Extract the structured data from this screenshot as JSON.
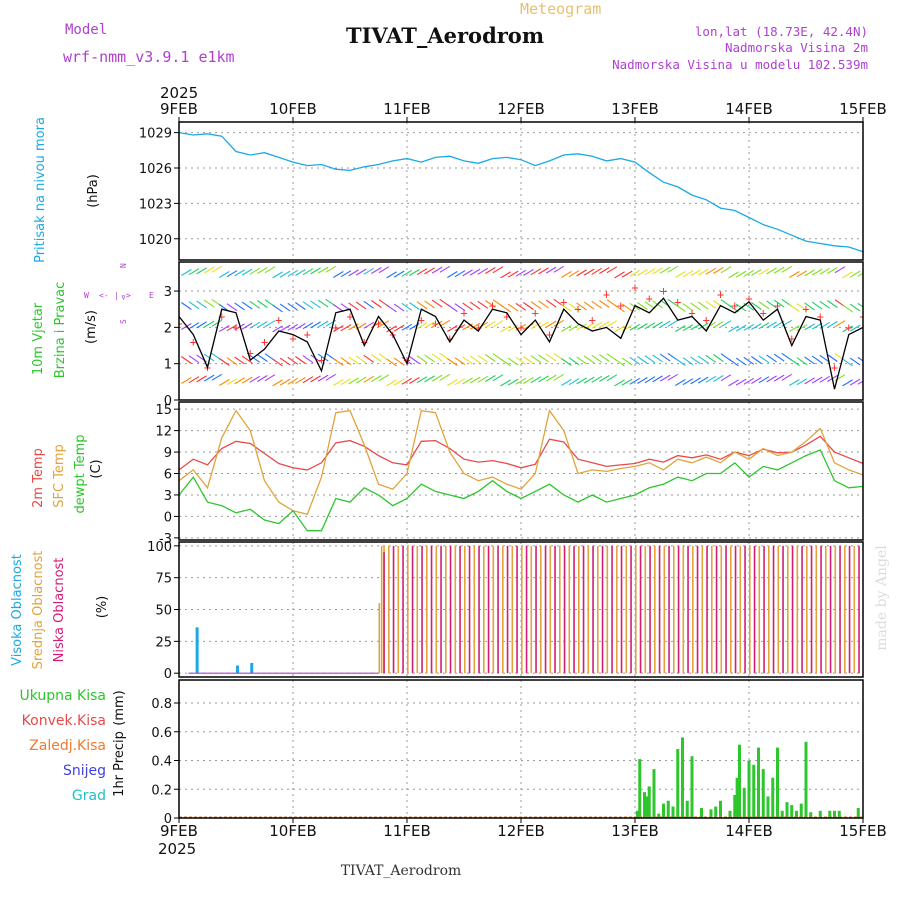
{
  "header": {
    "model_label": "Model",
    "model_name": "wrf-nmm_v3.9.1 e1km",
    "meteogram_label": "Meteogram",
    "station_title": "TIVAT_Aerodrom",
    "lonlat": "lon,lat (18.73E, 42.4N)",
    "altitude": "Nadmorska Visina 2m",
    "model_altitude": "Nadmorska Visina u modelu 102.539m",
    "footer_title": "TIVAT_Aerodrom",
    "watermark": "made by Angel"
  },
  "colors": {
    "pressure": "#1ba9e6",
    "wind_speed": "#000000",
    "wind_dir": "#ff3333",
    "temp2m": "#e84a4a",
    "sfc_temp": "#e0a43c",
    "dewpt": "#2dc62d",
    "cloud_high": "#1ba9e6",
    "cloud_mid": "#e0a43c",
    "cloud_low": "#d21e78",
    "precip_total": "#2dc62d",
    "precip_conv": "#e84a4a",
    "purple": "#b040d0"
  },
  "chart_data": [
    {
      "type": "line",
      "panel": "pressure",
      "ylabel_1": "Pritisak na nivou mora",
      "ylabel_2": "(hPa)",
      "ylim": [
        1018.2,
        1029.9
      ],
      "yticks": [
        "1020",
        "1023",
        "1026",
        "1029"
      ],
      "ytick_values": [
        1020,
        1023,
        1026,
        1029
      ],
      "x_hours": [
        0,
        3,
        6,
        9,
        12,
        15,
        18,
        21,
        24,
        27,
        30,
        33,
        36,
        39,
        42,
        45,
        48,
        51,
        54,
        57,
        60,
        63,
        66,
        69,
        72,
        75,
        78,
        81,
        84,
        87,
        90,
        93,
        96,
        99,
        102,
        105,
        108,
        111,
        114,
        117,
        120,
        123,
        126,
        129,
        132,
        135,
        138,
        141,
        144
      ],
      "values": [
        1029.0,
        1028.8,
        1028.9,
        1028.7,
        1027.4,
        1027.1,
        1027.3,
        1026.9,
        1026.5,
        1026.2,
        1026.3,
        1025.9,
        1025.8,
        1026.1,
        1026.3,
        1026.6,
        1026.8,
        1026.5,
        1026.9,
        1027.0,
        1026.6,
        1026.4,
        1026.8,
        1026.9,
        1026.7,
        1026.2,
        1026.6,
        1027.1,
        1027.2,
        1027.0,
        1026.6,
        1026.8,
        1026.5,
        1025.6,
        1024.8,
        1024.4,
        1023.7,
        1023.3,
        1022.6,
        1022.4,
        1021.8,
        1021.2,
        1020.8,
        1020.3,
        1019.8,
        1019.6,
        1019.4,
        1019.3,
        1018.9
      ]
    },
    {
      "type": "line",
      "panel": "wind",
      "ylabel_1": "10m Vjetar",
      "ylabel_2": "Brzina i Pravac",
      "ylabel_3": "(m/s)",
      "compass": [
        "W",
        "<-",
        "|",
        "->",
        "E",
        "S",
        "<",
        "N"
      ],
      "ylim": [
        0,
        3.8
      ],
      "yticks": [
        "0",
        "1",
        "2",
        "3"
      ],
      "ytick_values": [
        0,
        1,
        2,
        3
      ],
      "x_hours": [
        0,
        3,
        6,
        9,
        12,
        15,
        18,
        21,
        24,
        27,
        30,
        33,
        36,
        39,
        42,
        45,
        48,
        51,
        54,
        57,
        60,
        63,
        66,
        69,
        72,
        75,
        78,
        81,
        84,
        87,
        90,
        93,
        96,
        99,
        102,
        105,
        108,
        111,
        114,
        117,
        120,
        123,
        126,
        129,
        132,
        135,
        138,
        141,
        144
      ],
      "values": [
        2.3,
        1.8,
        0.9,
        2.5,
        2.4,
        1.1,
        1.4,
        1.9,
        1.8,
        1.6,
        0.8,
        2.4,
        2.5,
        1.5,
        2.3,
        1.8,
        1.0,
        2.5,
        2.3,
        1.6,
        2.2,
        1.9,
        2.5,
        2.4,
        1.8,
        2.2,
        1.6,
        2.5,
        2.1,
        1.9,
        2.0,
        1.7,
        2.6,
        2.4,
        2.8,
        2.2,
        2.3,
        1.9,
        2.6,
        2.4,
        2.7,
        2.2,
        2.5,
        1.5,
        2.3,
        2.2,
        0.3,
        1.8,
        2.0
      ],
      "direction_values": [
        2.1,
        1.6,
        0.9,
        2.3,
        2.0,
        1.3,
        1.6,
        2.2,
        1.7,
        1.8,
        1.1,
        2.0,
        2.3,
        1.6,
        2.1,
        1.8,
        1.1,
        2.2,
        2.1,
        1.7,
        2.4,
        2.0,
        2.6,
        2.3,
        2.0,
        2.4,
        1.8,
        2.7,
        2.5,
        2.2,
        2.9,
        2.6,
        3.1,
        2.8,
        3.0,
        2.7,
        2.4,
        2.2,
        2.9,
        2.6,
        2.8,
        2.4,
        2.6,
        1.7,
        2.5,
        2.3,
        0.9,
        2.0,
        2.3
      ]
    },
    {
      "type": "line",
      "panel": "temperature",
      "ylabel_1": "2m Temp",
      "ylabel_2": "SFC Temp",
      "ylabel_3": "dewpt Temp",
      "ylabel_4": "(C)",
      "ylim": [
        -3.3,
        16
      ],
      "yticks": [
        "-3",
        "0",
        "3",
        "6",
        "9",
        "12",
        "15"
      ],
      "ytick_values": [
        -3,
        0,
        3,
        6,
        9,
        12,
        15
      ],
      "x_hours": [
        0,
        3,
        6,
        9,
        12,
        15,
        18,
        21,
        24,
        27,
        30,
        33,
        36,
        39,
        42,
        45,
        48,
        51,
        54,
        57,
        60,
        63,
        66,
        69,
        72,
        75,
        78,
        81,
        84,
        87,
        90,
        93,
        96,
        99,
        102,
        105,
        108,
        111,
        114,
        117,
        120,
        123,
        126,
        129,
        132,
        135,
        138,
        141,
        144
      ],
      "series": [
        {
          "name": "2m Temp",
          "values": [
            6.5,
            8.0,
            7.2,
            9.5,
            10.5,
            10.2,
            8.8,
            7.4,
            6.8,
            6.5,
            7.5,
            10.3,
            10.6,
            9.8,
            8.5,
            7.5,
            7.2,
            10.5,
            10.6,
            9.5,
            8.0,
            7.6,
            7.8,
            7.4,
            6.8,
            7.3,
            10.8,
            10.4,
            8.0,
            7.5,
            7.0,
            7.2,
            7.4,
            8.0,
            7.6,
            8.5,
            8.2,
            8.6,
            8.0,
            9.0,
            8.5,
            9.4,
            8.9,
            9.0,
            10.0,
            11.2,
            9.0,
            8.2,
            7.4
          ]
        },
        {
          "name": "SFC Temp",
          "values": [
            5.0,
            6.5,
            4.0,
            11.0,
            14.8,
            12.0,
            5.0,
            2.0,
            0.8,
            0.3,
            5.5,
            14.5,
            14.8,
            10.0,
            4.5,
            3.8,
            6.0,
            14.8,
            14.5,
            9.0,
            6.0,
            5.0,
            5.5,
            4.5,
            3.8,
            6.0,
            14.8,
            12.0,
            6.0,
            6.5,
            6.3,
            6.7,
            7.0,
            7.5,
            6.5,
            8.0,
            7.5,
            8.3,
            7.5,
            9.0,
            8.0,
            9.5,
            8.5,
            9.0,
            10.5,
            12.3,
            7.5,
            6.5,
            5.8
          ]
        },
        {
          "name": "dewpt Temp",
          "values": [
            3.0,
            5.5,
            2.0,
            1.5,
            0.5,
            1.0,
            -0.5,
            -1.0,
            0.8,
            -2.0,
            -2.0,
            2.5,
            2.0,
            4.0,
            3.0,
            1.5,
            2.5,
            4.5,
            3.5,
            3.0,
            2.5,
            3.5,
            5.0,
            3.5,
            2.5,
            3.5,
            4.5,
            3.0,
            2.0,
            3.0,
            2.0,
            2.5,
            3.0,
            4.0,
            4.5,
            5.5,
            5.0,
            6.0,
            6.0,
            7.5,
            5.5,
            7.0,
            6.5,
            7.5,
            8.5,
            9.3,
            5.0,
            4.0,
            4.2
          ]
        }
      ]
    },
    {
      "type": "bar",
      "panel": "cloud",
      "ylabel_1": "Visoka Oblacnost",
      "ylabel_2": "Srednja Oblacnost",
      "ylabel_3": "Niska Oblacnost",
      "ylabel_4": "(%)",
      "ylim": [
        -3,
        103
      ],
      "yticks": [
        "0",
        "25",
        "50",
        "75",
        "100"
      ],
      "ytick_values": [
        0,
        25,
        50,
        75,
        100
      ],
      "note": "high values (H), mid values (M), low values (L) per 1.5h step",
      "high": {
        "x_hours": [
          3.5,
          12,
          15
        ],
        "values": [
          36,
          6,
          8
        ]
      },
      "mid": {
        "x_hours": [
          42,
          42.5,
          43,
          44,
          46,
          48,
          50,
          52,
          54,
          56,
          58,
          60,
          62,
          64,
          66,
          68,
          70,
          72,
          74,
          76,
          78,
          80,
          82,
          84,
          86,
          88,
          90,
          92,
          94,
          96,
          98,
          100,
          102,
          104,
          106,
          108,
          110,
          112,
          114,
          116,
          118,
          120,
          122,
          124,
          126,
          128,
          130,
          132,
          134,
          136,
          138,
          140,
          142
        ],
        "values": [
          55,
          100,
          100,
          100,
          100,
          100,
          100,
          100,
          100,
          100,
          100,
          100,
          100,
          100,
          100,
          100,
          100,
          100,
          100,
          100,
          100,
          100,
          100,
          100,
          100,
          100,
          100,
          100,
          100,
          100,
          100,
          100,
          100,
          100,
          100,
          100,
          100,
          100,
          100,
          100,
          100,
          100,
          100,
          100,
          100,
          100,
          100,
          100,
          100,
          100,
          100,
          100,
          100
        ]
      },
      "low": {
        "x_hours": [
          43,
          45,
          47,
          49,
          51,
          53,
          55,
          57,
          59,
          61,
          63,
          65,
          67,
          69,
          71,
          73,
          75,
          77,
          79,
          81,
          83,
          85,
          87,
          89,
          91,
          93,
          95,
          97,
          99,
          101,
          103,
          105,
          107,
          109,
          111,
          113,
          115,
          117,
          119,
          121,
          123,
          125,
          127,
          129,
          131,
          133,
          135,
          137,
          139,
          141,
          143
        ],
        "values": [
          95,
          100,
          100,
          100,
          100,
          100,
          100,
          100,
          100,
          100,
          100,
          100,
          100,
          100,
          100,
          100,
          100,
          100,
          100,
          100,
          100,
          100,
          100,
          100,
          100,
          100,
          100,
          100,
          100,
          100,
          100,
          100,
          100,
          100,
          100,
          100,
          100,
          100,
          100,
          100,
          100,
          100,
          100,
          100,
          100,
          100,
          100,
          100,
          100,
          100,
          100
        ]
      }
    },
    {
      "type": "bar",
      "panel": "precip",
      "legend": [
        "Ukupna Kisa",
        "Konvek.Kisa",
        "Zaledj.Kisa",
        "Snijeg",
        "Grad"
      ],
      "ylabel_1": "1hr Precip",
      "ylabel_2": "(mm)",
      "ylim": [
        0,
        0.96
      ],
      "yticks": [
        "0",
        "0.2",
        "0.4",
        "0.6",
        "0.8"
      ],
      "ytick_values": [
        0,
        0.2,
        0.4,
        0.6,
        0.8
      ],
      "x_hours": [
        96.5,
        97,
        98,
        98.5,
        99,
        100,
        101,
        102,
        103,
        104,
        105,
        106,
        107,
        108,
        110,
        112,
        113,
        114,
        116,
        117,
        117.5,
        118,
        119,
        120,
        121,
        122,
        123,
        124,
        125,
        126,
        127,
        128,
        129,
        130,
        131,
        132,
        133,
        135,
        137,
        138,
        139,
        143
      ],
      "values": [
        0.05,
        0.41,
        0.18,
        0.15,
        0.22,
        0.34,
        0.03,
        0.1,
        0.12,
        0.08,
        0.48,
        0.56,
        0.12,
        0.43,
        0.07,
        0.06,
        0.08,
        0.12,
        0.05,
        0.16,
        0.28,
        0.51,
        0.21,
        0.4,
        0.37,
        0.49,
        0.34,
        0.15,
        0.28,
        0.49,
        0.05,
        0.11,
        0.09,
        0.05,
        0.1,
        0.53,
        0.04,
        0.05,
        0.05,
        0.05,
        0.05,
        0.07
      ]
    }
  ],
  "x_axis": {
    "year": "2025",
    "date_labels": [
      "9FEB",
      "10FEB",
      "11FEB",
      "12FEB",
      "13FEB",
      "14FEB",
      "15FEB"
    ],
    "date_hours": [
      0,
      24,
      48,
      72,
      96,
      120,
      144
    ]
  }
}
